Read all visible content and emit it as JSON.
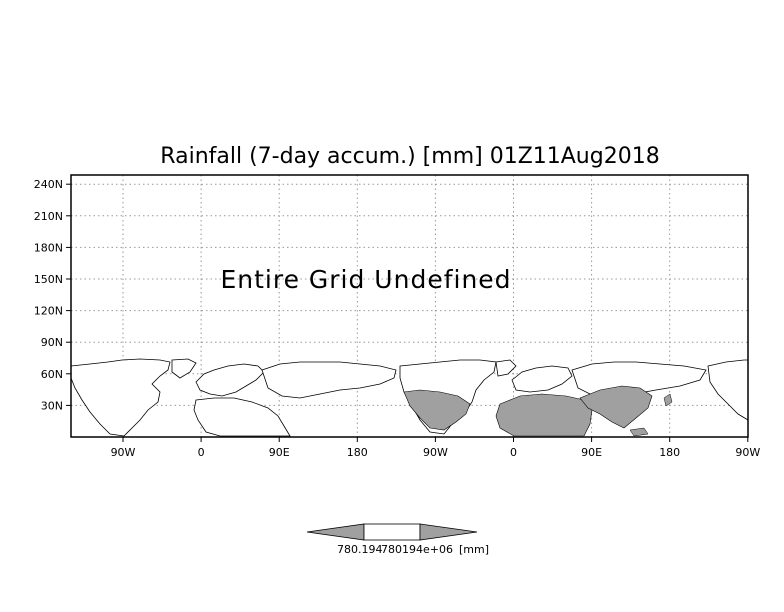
{
  "chart_data": {
    "type": "heatmap",
    "title": "Rainfall (7-day accum.) [mm] 01Z11Aug2018",
    "annotation": "Entire Grid Undefined",
    "x_tick_labels": [
      "90W",
      "0",
      "90E",
      "180",
      "90W",
      "0",
      "90E",
      "180",
      "90W"
    ],
    "y_tick_labels": [
      "30N",
      "60N",
      "90N",
      "120N",
      "150N",
      "180N",
      "210N",
      "240N"
    ],
    "grid": true,
    "colorbar": {
      "labels": [
        "780.194",
        "780194e+06",
        "[mm]"
      ]
    },
    "colors": {
      "land_fill": "#a0a0a0",
      "coastline": "#000000",
      "grid": "#999999"
    }
  }
}
